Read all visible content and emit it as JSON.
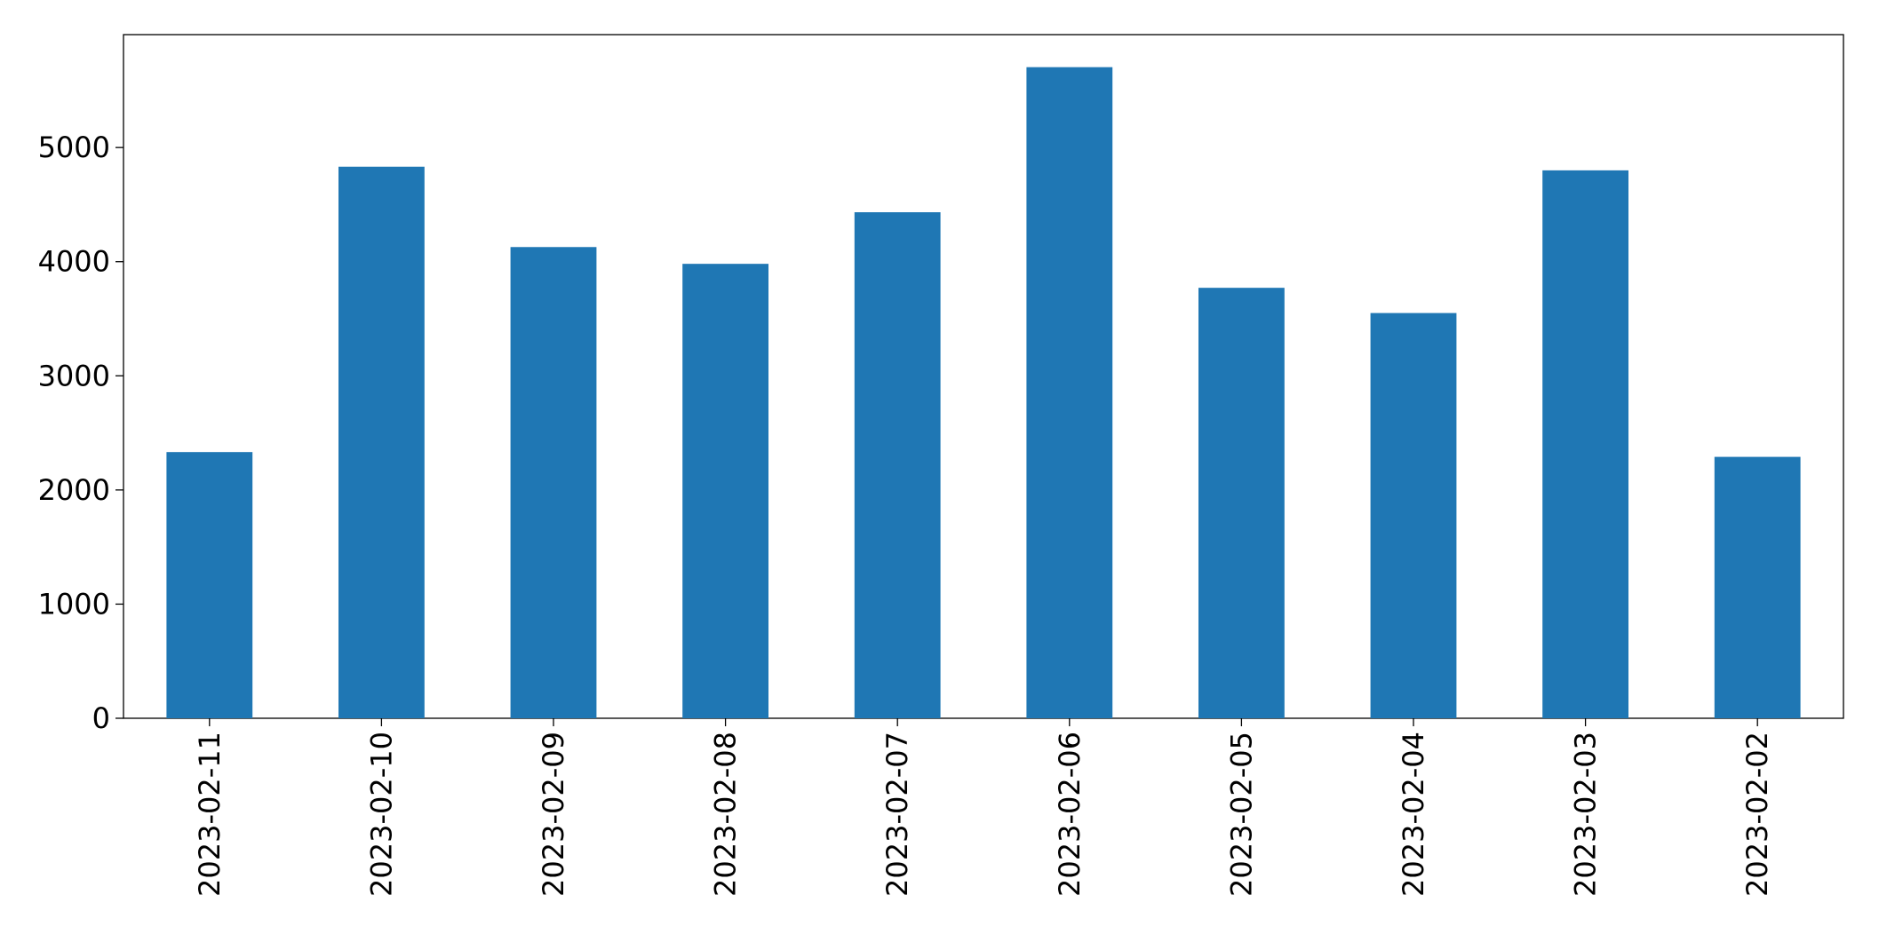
{
  "chart_data": {
    "type": "bar",
    "categories": [
      "2023-02-11",
      "2023-02-10",
      "2023-02-09",
      "2023-02-08",
      "2023-02-07",
      "2023-02-06",
      "2023-02-05",
      "2023-02-04",
      "2023-02-03",
      "2023-02-02"
    ],
    "values": [
      2332,
      4832,
      4128,
      3981,
      4433,
      5704,
      3771,
      3550,
      4800,
      2290
    ],
    "color": "#1f77b4",
    "ylim": [
      0,
      5989
    ],
    "yticks": [
      0,
      1000,
      2000,
      3000,
      4000,
      5000
    ],
    "grid": false
  }
}
